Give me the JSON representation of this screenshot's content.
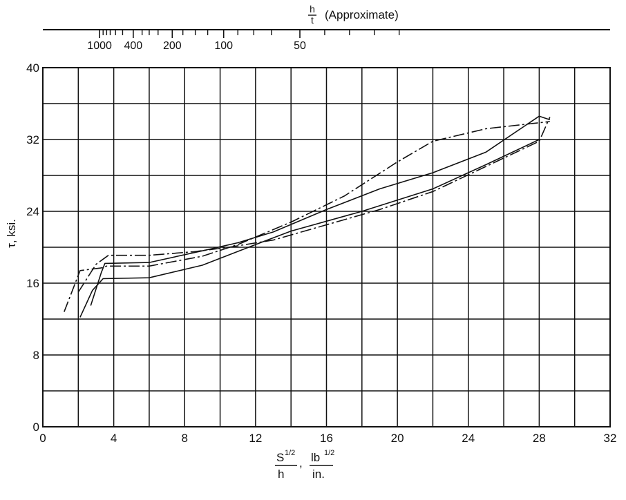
{
  "chart_data": {
    "type": "line",
    "title": "",
    "xlabel": {
      "num": "S",
      "num_exp": "1/2",
      "den": "h",
      "sep": ",",
      "unit_num": "lb",
      "unit_exp": "1/2",
      "unit_den": "in."
    },
    "ylabel": "τ, ksi.",
    "xlim": [
      0,
      32
    ],
    "ylim": [
      0,
      40
    ],
    "x_ticks": [
      0,
      4,
      8,
      12,
      16,
      20,
      24,
      28,
      32
    ],
    "y_ticks": [
      0,
      8,
      16,
      24,
      32,
      40
    ],
    "grid": true,
    "top_axis": {
      "label_frac": "h/t",
      "label_note": "(Approximate)",
      "tick_labels": [
        {
          "label": "1000",
          "x": 3.2
        },
        {
          "label": "400",
          "x": 5.1
        },
        {
          "label": "200",
          "x": 7.3
        },
        {
          "label": "100",
          "x": 10.2
        },
        {
          "label": "50",
          "x": 14.5
        }
      ],
      "minor_ticks": [
        3.4,
        3.6,
        3.8,
        4.1,
        4.5,
        5.6,
        6.0,
        6.5,
        7.9,
        8.6,
        9.3,
        11.0,
        11.9,
        12.9,
        15.9,
        17.3,
        18.7,
        20.1
      ]
    },
    "series": [
      {
        "style": "solid",
        "points": [
          [
            2.1,
            12.2
          ],
          [
            2.8,
            15.2
          ],
          [
            3.4,
            16.5
          ],
          [
            6,
            16.6
          ],
          [
            9,
            18
          ],
          [
            12,
            20.3
          ],
          [
            14,
            21.8
          ],
          [
            18,
            24
          ],
          [
            22,
            26.5
          ],
          [
            25,
            29.2
          ],
          [
            28,
            32
          ]
        ]
      },
      {
        "style": "dashdot",
        "points": [
          [
            1.2,
            12.8
          ],
          [
            2.1,
            17.4
          ],
          [
            3.3,
            17.7
          ],
          [
            3.6,
            17.9
          ],
          [
            6,
            17.9
          ],
          [
            9,
            19
          ],
          [
            11,
            20.3
          ],
          [
            14,
            22.8
          ],
          [
            17,
            25.7
          ],
          [
            20,
            29.5
          ],
          [
            22,
            31.8
          ],
          [
            25,
            33.2
          ],
          [
            28.6,
            34
          ]
        ]
      },
      {
        "style": "dashdot",
        "points": [
          [
            2.0,
            15.0
          ],
          [
            3.0,
            18.1
          ],
          [
            3.7,
            19.1
          ],
          [
            6,
            19.1
          ],
          [
            8.5,
            19.5
          ],
          [
            10.5,
            20
          ],
          [
            13,
            20.8
          ],
          [
            16,
            22.5
          ],
          [
            19,
            24.2
          ],
          [
            22,
            26.2
          ],
          [
            25,
            29
          ],
          [
            28,
            31.8
          ],
          [
            28.6,
            34.5
          ]
        ]
      },
      {
        "style": "solid",
        "points": [
          [
            2.7,
            13.5
          ],
          [
            3.3,
            17.2
          ],
          [
            3.5,
            18.2
          ],
          [
            6,
            18.3
          ],
          [
            9,
            19.6
          ],
          [
            11,
            20.5
          ],
          [
            13,
            21.7
          ],
          [
            16,
            24.2
          ],
          [
            19,
            26.5
          ],
          [
            22,
            28.3
          ],
          [
            25,
            30.6
          ],
          [
            28,
            34.6
          ],
          [
            28.6,
            34.2
          ]
        ]
      }
    ]
  }
}
